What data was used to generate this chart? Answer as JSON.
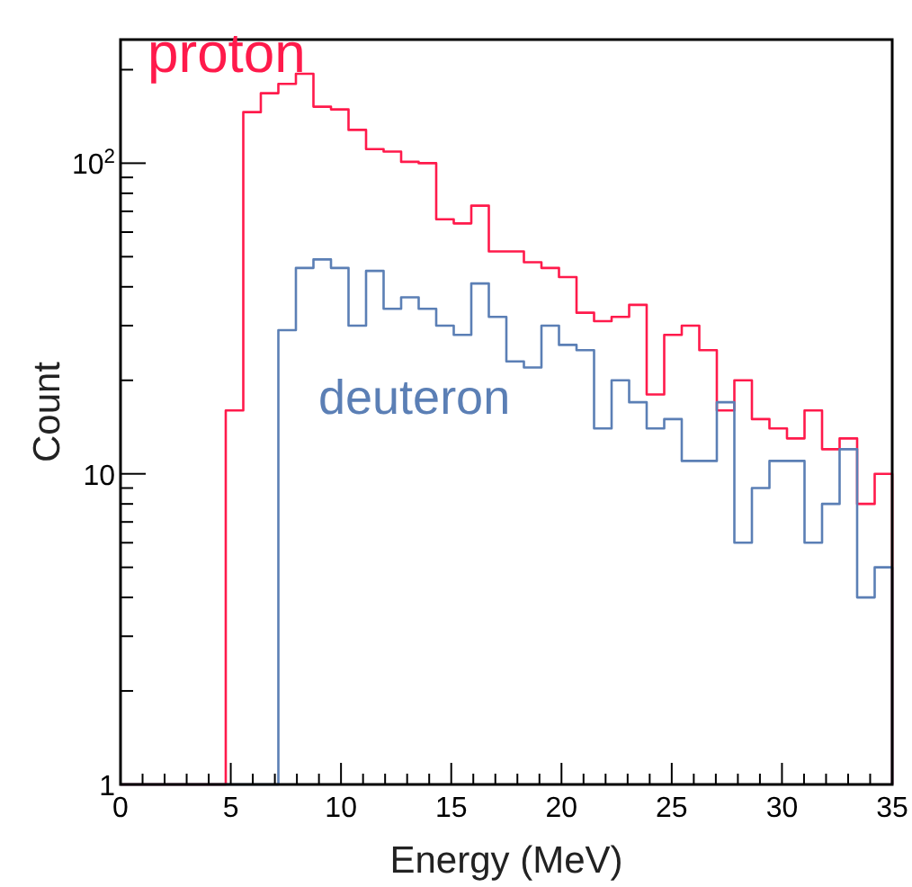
{
  "chart_data": {
    "type": "histogram",
    "xlabel": "Energy (MeV)",
    "ylabel": "Count",
    "log": "y",
    "grid": false,
    "bins": [
      0,
      0.7955,
      1.5909,
      2.3864,
      3.1818,
      3.9773,
      4.7727,
      5.5682,
      6.3636,
      7.1591,
      7.9545,
      8.75,
      9.5455,
      10.3409,
      11.1364,
      11.9318,
      12.7273,
      13.5227,
      14.3182,
      15.1136,
      15.9091,
      16.7045,
      17.5,
      18.2955,
      19.0909,
      19.8864,
      20.6818,
      21.4773,
      22.2727,
      23.0682,
      23.8636,
      24.6591,
      25.4545,
      26.25,
      27.0455,
      27.8409,
      28.6364,
      29.4318,
      30.2273,
      31.0227,
      31.8182,
      32.6136,
      33.4091,
      34.2045,
      35
    ],
    "series": [
      {
        "name": "proton",
        "color": "#ff1a4b",
        "values": [
          null,
          null,
          null,
          null,
          null,
          null,
          16,
          146,
          168,
          180,
          194,
          152,
          149,
          128,
          111,
          109,
          101,
          100,
          66,
          64,
          73,
          52,
          52,
          48,
          46,
          43,
          33,
          31,
          32,
          35,
          18,
          28,
          30,
          25,
          16,
          20,
          15,
          14,
          13,
          16,
          12,
          13,
          8,
          10
        ]
      },
      {
        "name": "deuteron",
        "color": "#5b7fb5",
        "values": [
          null,
          null,
          null,
          null,
          null,
          null,
          null,
          null,
          null,
          29,
          46,
          49,
          46,
          30,
          45,
          34,
          37,
          34,
          30,
          28,
          41,
          32,
          23,
          22,
          30,
          26,
          25,
          14,
          20,
          17,
          14,
          15,
          11,
          11,
          17,
          6,
          9,
          11,
          11,
          6,
          8,
          12,
          4,
          5
        ]
      }
    ],
    "xlim": [
      0,
      35
    ],
    "xticks": [
      0,
      {
        "value": 1,
        "label": null
      },
      {
        "value": 2,
        "label": null
      },
      {
        "value": 3,
        "label": null
      },
      {
        "value": 4,
        "label": null
      },
      5,
      {
        "value": 6,
        "label": null
      },
      {
        "value": 7,
        "label": null
      },
      {
        "value": 8,
        "label": null
      },
      {
        "value": 9,
        "label": null
      },
      10,
      {
        "value": 11,
        "label": null
      },
      {
        "value": 12,
        "label": null
      },
      {
        "value": 13,
        "label": null
      },
      {
        "value": 14,
        "label": null
      },
      15,
      {
        "value": 16,
        "label": null
      },
      {
        "value": 17,
        "label": null
      },
      {
        "value": 18,
        "label": null
      },
      {
        "value": 19,
        "label": null
      },
      20,
      {
        "value": 21,
        "label": null
      },
      {
        "value": 22,
        "label": null
      },
      {
        "value": 23,
        "label": null
      },
      {
        "value": 24,
        "label": null
      },
      25,
      {
        "value": 26,
        "label": null
      },
      {
        "value": 27,
        "label": null
      },
      {
        "value": 28,
        "label": null
      },
      {
        "value": 29,
        "label": null
      },
      30,
      {
        "value": 31,
        "label": null
      },
      {
        "value": 32,
        "label": null
      },
      {
        "value": 33,
        "label": null
      },
      {
        "value": 34,
        "label": null
      },
      35
    ],
    "ylim": [
      1,
      250
    ],
    "yticks": [
      1,
      {
        "value": 2,
        "label": null
      },
      {
        "value": 3,
        "label": null
      },
      {
        "value": 4,
        "label": null
      },
      {
        "value": 5,
        "label": null
      },
      {
        "value": 6,
        "label": null
      },
      {
        "value": 7,
        "label": null
      },
      {
        "value": 8,
        "label": null
      },
      {
        "value": 9,
        "label": null
      },
      10,
      {
        "value": 20,
        "label": null
      },
      {
        "value": 30,
        "label": null
      },
      {
        "value": 40,
        "label": null
      },
      {
        "value": 50,
        "label": null
      },
      {
        "value": 60,
        "label": null
      },
      {
        "value": 70,
        "label": null
      },
      {
        "value": 80,
        "label": null
      },
      {
        "value": 90,
        "label": null
      },
      {
        "value": 100,
        "label": "10$^{2}$"
      },
      {
        "value": 200,
        "label": null
      }
    ]
  }
}
